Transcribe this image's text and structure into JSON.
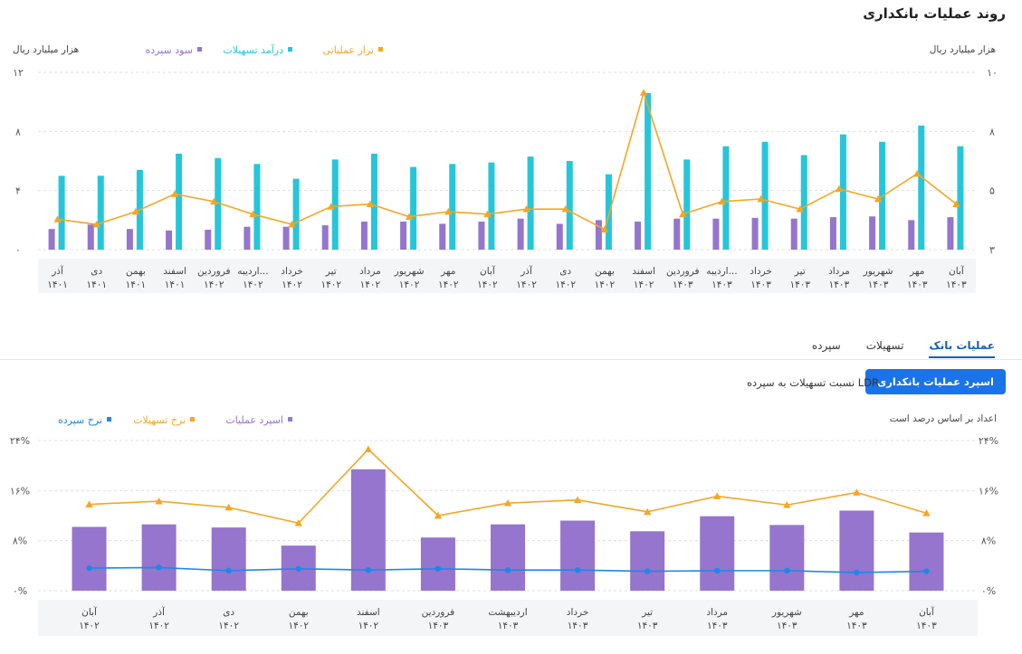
{
  "title": "روند عملیات بانکداری",
  "chart_data": [
    {
      "type": "bar",
      "left_unit": "هزار میلیارد ریال",
      "right_unit": "هزار میلیارد ریال",
      "left_ticks": [
        "۱۲",
        "۸",
        "۴",
        "۰"
      ],
      "left_ylim": [
        0,
        12
      ],
      "right_ticks": [
        "۱۰",
        "۸",
        "۵",
        "۳"
      ],
      "right_ylim": [
        3,
        10
      ],
      "grid": true,
      "legend_position": "top",
      "categories": [
        {
          "month": "آذر",
          "year": "۱۴۰۱"
        },
        {
          "month": "دی",
          "year": "۱۴۰۱"
        },
        {
          "month": "بهمن",
          "year": "۱۴۰۱"
        },
        {
          "month": "اسفند",
          "year": "۱۴۰۱"
        },
        {
          "month": "فروردین",
          "year": "۱۴۰۲"
        },
        {
          "month": "اردیبه...",
          "year": "۱۴۰۲"
        },
        {
          "month": "خرداد",
          "year": "۱۴۰۲"
        },
        {
          "month": "تیر",
          "year": "۱۴۰۲"
        },
        {
          "month": "مرداد",
          "year": "۱۴۰۲"
        },
        {
          "month": "شهریور",
          "year": "۱۴۰۲"
        },
        {
          "month": "مهر",
          "year": "۱۴۰۲"
        },
        {
          "month": "آبان",
          "year": "۱۴۰۲"
        },
        {
          "month": "آذر",
          "year": "۱۴۰۲"
        },
        {
          "month": "دی",
          "year": "۱۴۰۲"
        },
        {
          "month": "بهمن",
          "year": "۱۴۰۲"
        },
        {
          "month": "اسفند",
          "year": "۱۴۰۲"
        },
        {
          "month": "فروردین",
          "year": "۱۴۰۳"
        },
        {
          "month": "اردیبه...",
          "year": "۱۴۰۳"
        },
        {
          "month": "خرداد",
          "year": "۱۴۰۳"
        },
        {
          "month": "تیر",
          "year": "۱۴۰۳"
        },
        {
          "month": "مرداد",
          "year": "۱۴۰۳"
        },
        {
          "month": "شهریور",
          "year": "۱۴۰۳"
        },
        {
          "month": "مهر",
          "year": "۱۴۰۳"
        },
        {
          "month": "آبان",
          "year": "۱۴۰۳"
        }
      ],
      "series": [
        {
          "name": "سود سپرده",
          "kind": "bar",
          "axis": "left",
          "color": "#9575cd",
          "values": [
            1.4,
            1.7,
            1.4,
            1.3,
            1.35,
            1.55,
            1.55,
            1.65,
            1.9,
            1.9,
            1.75,
            1.9,
            2.1,
            1.75,
            2.0,
            1.9,
            2.1,
            2.1,
            2.15,
            2.1,
            2.2,
            2.25,
            2.0,
            2.2
          ]
        },
        {
          "name": "درآمد تسهیلات",
          "kind": "bar",
          "axis": "left",
          "color": "#26c6da",
          "values": [
            5.0,
            5.0,
            5.4,
            6.5,
            6.2,
            5.8,
            4.8,
            6.1,
            6.5,
            5.6,
            5.8,
            5.9,
            6.3,
            6.0,
            5.1,
            10.6,
            6.1,
            7.0,
            7.3,
            6.4,
            7.8,
            7.3,
            8.4,
            7.0
          ]
        },
        {
          "name": "تراز عملیاتی",
          "kind": "line",
          "axis": "right",
          "color": "#f5a623",
          "values": [
            4.2,
            4.0,
            4.5,
            5.2,
            4.9,
            4.4,
            4.0,
            4.7,
            4.8,
            4.3,
            4.5,
            4.4,
            4.6,
            4.6,
            3.8,
            9.2,
            4.4,
            4.9,
            5.0,
            4.6,
            5.4,
            5.0,
            6.0,
            4.8
          ]
        }
      ]
    },
    {
      "type": "bar",
      "unit_note": "اعداد بر اساس درصد است",
      "ticks": [
        "۲۴%",
        "۱۶%",
        "۸%",
        "۰%"
      ],
      "ylim": [
        0,
        24
      ],
      "grid": true,
      "legend_position": "top",
      "categories": [
        {
          "month": "آبان",
          "year": "۱۴۰۲"
        },
        {
          "month": "آذر",
          "year": "۱۴۰۲"
        },
        {
          "month": "دی",
          "year": "۱۴۰۲"
        },
        {
          "month": "بهمن",
          "year": "۱۴۰۲"
        },
        {
          "month": "اسفند",
          "year": "۱۴۰۲"
        },
        {
          "month": "فروردین",
          "year": "۱۴۰۳"
        },
        {
          "month": "اردیبهشت",
          "year": "۱۴۰۳"
        },
        {
          "month": "خرداد",
          "year": "۱۴۰۳"
        },
        {
          "month": "تیر",
          "year": "۱۴۰۳"
        },
        {
          "month": "مرداد",
          "year": "۱۴۰۳"
        },
        {
          "month": "شهریور",
          "year": "۱۴۰۳"
        },
        {
          "month": "مهر",
          "year": "۱۴۰۳"
        },
        {
          "month": "آبان",
          "year": "۱۴۰۳"
        }
      ],
      "series": [
        {
          "name": "اسپرد عملیات",
          "kind": "bar",
          "color": "#9575cd",
          "values": [
            10.2,
            10.6,
            10.1,
            7.2,
            19.4,
            8.5,
            10.6,
            11.2,
            9.5,
            11.9,
            10.5,
            12.8,
            9.3
          ]
        },
        {
          "name": "نرخ تسهیلات",
          "kind": "line",
          "color": "#f5a623",
          "values": [
            13.8,
            14.3,
            13.3,
            10.8,
            22.6,
            12.0,
            14.0,
            14.5,
            12.6,
            15.1,
            13.7,
            15.7,
            12.4
          ]
        },
        {
          "name": "نرخ سپرده",
          "kind": "line",
          "color": "#1e88e5",
          "values": [
            3.6,
            3.7,
            3.2,
            3.5,
            3.3,
            3.5,
            3.3,
            3.3,
            3.1,
            3.2,
            3.2,
            2.9,
            3.1
          ]
        }
      ]
    }
  ],
  "tabs": [
    {
      "label": "سپرده"
    },
    {
      "label": "تسهیلات"
    },
    {
      "label": "عملیات بانک",
      "active": true
    }
  ],
  "subtabs": {
    "active": "اسپرد عملیات بانکداری",
    "other": "نسبت تسهیلات به سپرده LDR"
  }
}
